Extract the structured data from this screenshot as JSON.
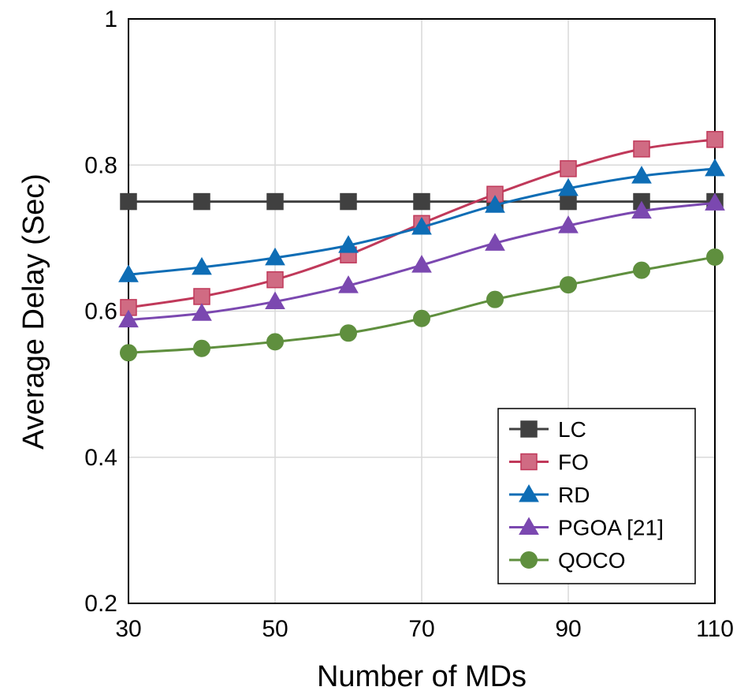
{
  "chart_data": {
    "type": "line",
    "xlabel": "Number of MDs",
    "ylabel": "Average Delay (Sec)",
    "x": [
      30,
      40,
      50,
      60,
      70,
      80,
      90,
      100,
      110
    ],
    "xlim": [
      30,
      110
    ],
    "ylim": [
      0.2,
      1.0
    ],
    "xticks": [
      "30",
      "50",
      "70",
      "90",
      "110"
    ],
    "yticks": [
      "0.2",
      "0.4",
      "0.6",
      "0.8",
      "1"
    ],
    "grid": true,
    "legend_position": "bottom-right",
    "series": [
      {
        "name": "LC",
        "marker": "square",
        "color": "#404040",
        "values": [
          0.75,
          0.75,
          0.75,
          0.75,
          0.75,
          0.75,
          0.75,
          0.75,
          0.75
        ]
      },
      {
        "name": "FO",
        "marker": "square",
        "color": "#c0395a",
        "values": [
          0.605,
          0.62,
          0.643,
          0.677,
          0.72,
          0.76,
          0.795,
          0.822,
          0.835
        ]
      },
      {
        "name": "RD",
        "marker": "triangle",
        "color": "#0e6db5",
        "values": [
          0.65,
          0.66,
          0.673,
          0.69,
          0.715,
          0.745,
          0.768,
          0.785,
          0.795
        ]
      },
      {
        "name": "PGOA [21]",
        "marker": "triangle",
        "color": "#7b48b0",
        "values": [
          0.588,
          0.597,
          0.613,
          0.635,
          0.663,
          0.693,
          0.717,
          0.737,
          0.748
        ]
      },
      {
        "name": "QOCO",
        "marker": "circle",
        "color": "#5f8f3e",
        "values": [
          0.543,
          0.549,
          0.558,
          0.57,
          0.59,
          0.616,
          0.636,
          0.656,
          0.674
        ]
      }
    ]
  }
}
